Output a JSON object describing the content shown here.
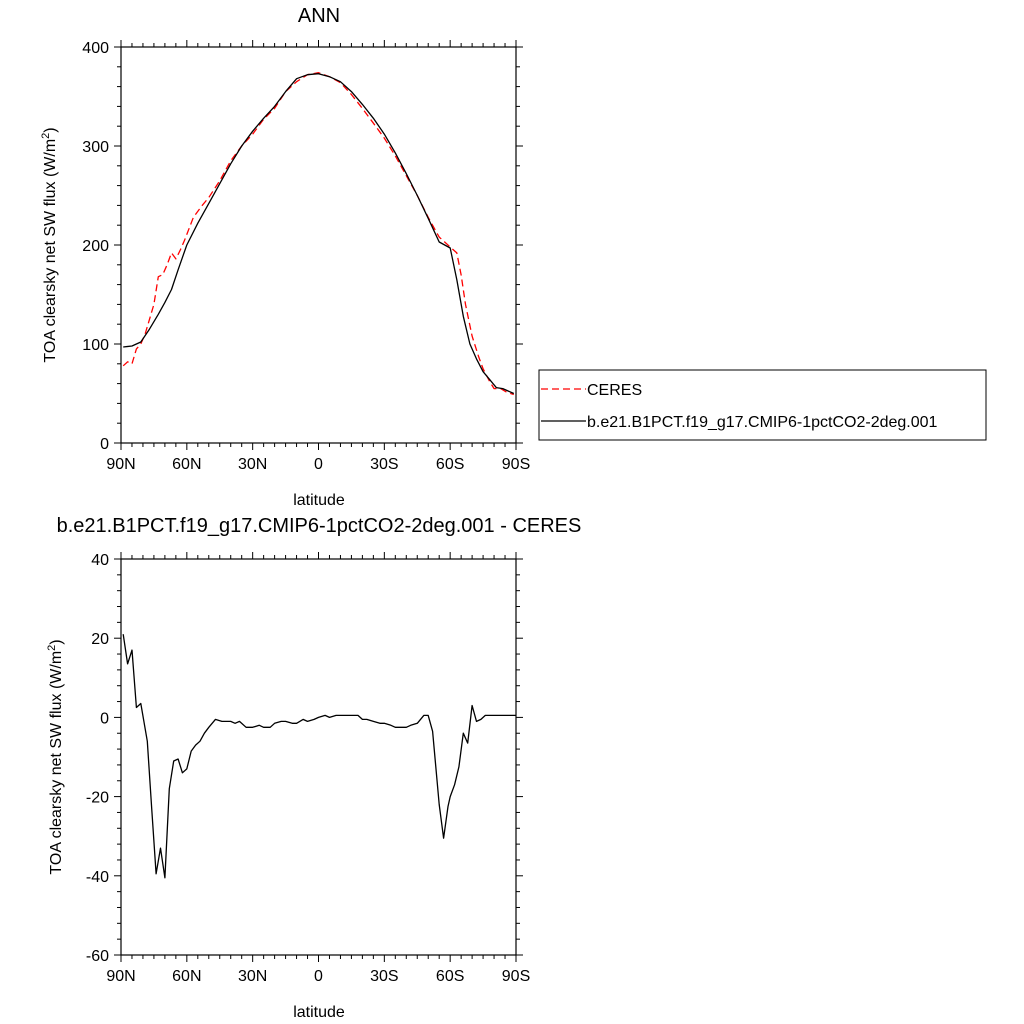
{
  "chart_data": [
    {
      "type": "line",
      "title": "ANN",
      "xlabel": "latitude",
      "ylabel": "TOA clearsky net SW flux (W/m²)",
      "xlim": [
        90,
        -90
      ],
      "ylim": [
        0,
        400
      ],
      "xticks": [
        90,
        60,
        30,
        0,
        -30,
        -60,
        -90
      ],
      "xtick_labels": [
        "90N",
        "60N",
        "30N",
        "0",
        "30S",
        "60S",
        "90S"
      ],
      "yticks": [
        0,
        100,
        200,
        300,
        400
      ],
      "ytick_labels": [
        "0",
        "100",
        "200",
        "300",
        "400"
      ],
      "grid": false,
      "legend_position": "right",
      "series": [
        {
          "name": "CERES",
          "color": "#ff0000",
          "dash": "dashed",
          "x": [
            89,
            87,
            85,
            83,
            81,
            79,
            77,
            75,
            73,
            71,
            69,
            67,
            65,
            63,
            61,
            57,
            53,
            50,
            45,
            40,
            35,
            30,
            25,
            20,
            15,
            10,
            5,
            0,
            -5,
            -10,
            -15,
            -20,
            -25,
            -30,
            -35,
            -40,
            -45,
            -50,
            -55,
            -60,
            -63,
            -65,
            -67,
            -70,
            -73,
            -75,
            -78,
            -80,
            -83,
            -86,
            -89
          ],
          "y": [
            78,
            82,
            80,
            95,
            100,
            110,
            125,
            140,
            168,
            170,
            180,
            192,
            186,
            195,
            205,
            228,
            240,
            248,
            265,
            285,
            300,
            312,
            327,
            338,
            355,
            365,
            372,
            374,
            370,
            364,
            352,
            338,
            323,
            308,
            290,
            270,
            250,
            228,
            208,
            198,
            192,
            170,
            140,
            108,
            87,
            75,
            62,
            55,
            55,
            51,
            49
          ]
        },
        {
          "name": "b.e21.B1PCT.f19_g17.CMIP6-1pctCO2-2deg.001",
          "color": "#000000",
          "dash": "solid",
          "x": [
            89,
            85,
            81,
            77,
            73,
            70,
            67,
            64,
            60,
            55,
            50,
            45,
            40,
            35,
            30,
            25,
            20,
            15,
            10,
            5,
            0,
            -5,
            -10,
            -15,
            -20,
            -25,
            -30,
            -35,
            -40,
            -45,
            -50,
            -55,
            -60,
            -63,
            -66,
            -69,
            -72,
            -75,
            -78,
            -81,
            -84,
            -89
          ],
          "y": [
            97,
            98,
            102,
            115,
            130,
            142,
            155,
            175,
            200,
            222,
            242,
            262,
            282,
            300,
            315,
            328,
            340,
            355,
            368,
            372,
            373,
            370,
            365,
            355,
            342,
            328,
            312,
            293,
            272,
            250,
            227,
            203,
            197,
            165,
            128,
            100,
            85,
            72,
            64,
            56,
            55,
            50
          ]
        }
      ]
    },
    {
      "type": "line",
      "title": "b.e21.B1PCT.f19_g17.CMIP6-1pctCO2-2deg.001 - CERES",
      "xlabel": "latitude",
      "ylabel": "TOA clearsky net SW flux (W/m²)",
      "xlim": [
        90,
        -90
      ],
      "ylim": [
        -60,
        40
      ],
      "xticks": [
        90,
        60,
        30,
        0,
        -30,
        -60,
        -90
      ],
      "xtick_labels": [
        "90N",
        "60N",
        "30N",
        "0",
        "30S",
        "60S",
        "90S"
      ],
      "yticks": [
        -60,
        -40,
        -20,
        0,
        20,
        40
      ],
      "ytick_labels": [
        "-60",
        "-40",
        "-20",
        "0",
        "20",
        "40"
      ],
      "grid": false,
      "series": [
        {
          "color": "#000000",
          "dash": "solid",
          "x": [
            89,
            87,
            85,
            83,
            81,
            78,
            76,
            74,
            72,
            70,
            68,
            66,
            64,
            62,
            60,
            58,
            56,
            54,
            52,
            50,
            47,
            44,
            42,
            40,
            38,
            36,
            33,
            30,
            27,
            25,
            22,
            20,
            17,
            15,
            12,
            10,
            7,
            5,
            2,
            0,
            -3,
            -5,
            -8,
            -10,
            -13,
            -15,
            -18,
            -20,
            -22,
            -25,
            -28,
            -30,
            -33,
            -35,
            -38,
            -40,
            -42,
            -45,
            -48,
            -50,
            -52,
            -55,
            -57,
            -59,
            -60,
            -62,
            -64,
            -66,
            -68,
            -70,
            -72,
            -74,
            -76,
            -78,
            -80,
            -82,
            -84,
            -86,
            -88,
            -90
          ],
          "y": [
            21,
            13.5,
            17,
            2.5,
            3.5,
            -6,
            -23,
            -39.5,
            -33,
            -40.5,
            -18,
            -11,
            -10.5,
            -14,
            -13,
            -8.5,
            -7,
            -6,
            -4,
            -2.5,
            -0.5,
            -1,
            -1,
            -1,
            -1.5,
            -1,
            -2.5,
            -2.5,
            -2,
            -2.5,
            -2.5,
            -1.5,
            -1,
            -1,
            -1.5,
            -1.5,
            -0.5,
            -1,
            -0.5,
            0,
            0.5,
            0,
            0.5,
            0.5,
            0.5,
            0.5,
            0.5,
            -0.5,
            -0.5,
            -1,
            -1.5,
            -1.5,
            -2,
            -2.5,
            -2.5,
            -2.5,
            -2,
            -1.5,
            0.5,
            0.5,
            -3.5,
            -22,
            -30.5,
            -22.5,
            -20,
            -17,
            -12.5,
            -4,
            -6.5,
            3,
            -1,
            -0.5,
            0.5,
            0.5,
            0.5,
            0.5,
            0.5,
            0.5,
            0.5,
            0.5
          ]
        }
      ]
    }
  ],
  "legend": {
    "ceres_label": "CERES",
    "model_label": "b.e21.B1PCT.f19_g17.CMIP6-1pctCO2-2deg.001"
  }
}
